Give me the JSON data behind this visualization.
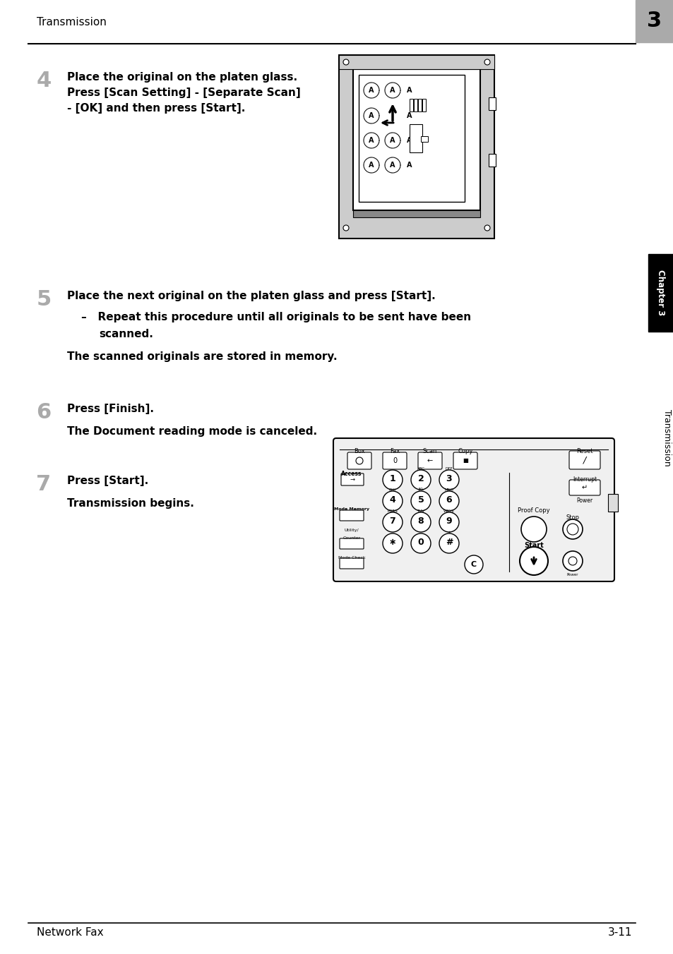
{
  "bg_color": "#ffffff",
  "header_text": "Transmission",
  "chapter_box_text": "3",
  "footer_text_left": "Network Fax",
  "footer_text_right": "3-11",
  "step4_number": "4",
  "step4_text_line1": "Place the original on the platen glass.",
  "step4_text_line2": "Press [Scan Setting] - [Separate Scan]",
  "step4_text_line3": "- [OK] and then press [Start].",
  "step5_number": "5",
  "step5_text_main": "Place the next original on the platen glass and press [Start].",
  "step5_bullet1": "–   Repeat this procedure until all originals to be sent have been",
  "step5_bullet2": "     scanned.",
  "step5_note": "The scanned originals are stored in memory.",
  "step6_number": "6",
  "step6_text_main": "Press [Finish].",
  "step6_note": "The Document reading mode is canceled.",
  "step7_number": "7",
  "step7_text_main": "Press [Start].",
  "step7_note": "Transmission begins.",
  "chapter_tab_text": "Chapter 3",
  "transmission_tab_text": "Transmission"
}
